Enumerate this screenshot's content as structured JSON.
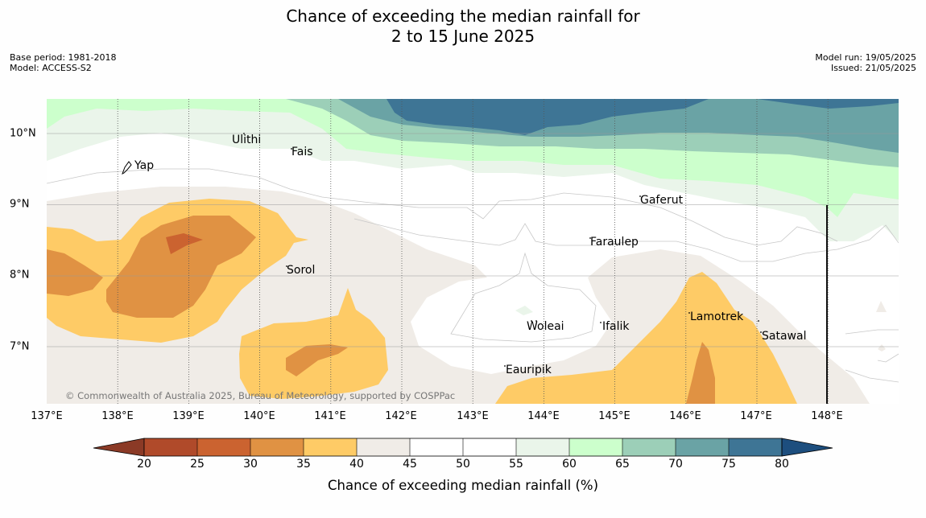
{
  "title": {
    "line1": "Chance of exceeding the median rainfall for",
    "line2": "2 to 15 June 2025"
  },
  "meta": {
    "base_period": "Base period: 1981-2018",
    "model": "Model: ACCESS-S2",
    "model_run": "Model run: 19/05/2025",
    "issued": "Issued: 21/05/2025"
  },
  "map": {
    "lon_range": [
      137,
      149
    ],
    "lat_range": [
      6.2,
      10.5
    ],
    "x_ticks": [
      "137°E",
      "138°E",
      "139°E",
      "140°E",
      "141°E",
      "142°E",
      "143°E",
      "144°E",
      "145°E",
      "146°E",
      "147°E",
      "148°E"
    ],
    "y_ticks": [
      "10°N",
      "9°N",
      "8°N",
      "7°N"
    ],
    "places": [
      {
        "name": "Ulithi"
      },
      {
        "name": "Fais"
      },
      {
        "name": "Yap"
      },
      {
        "name": "Gaferut"
      },
      {
        "name": "Faraulep"
      },
      {
        "name": "Sorol"
      },
      {
        "name": "Lamotrek"
      },
      {
        "name": "Woleai"
      },
      {
        "name": "Ifalik"
      },
      {
        "name": "Satawal"
      },
      {
        "name": "Eauripik"
      }
    ],
    "copyright": "© Commonwealth of Australia 2025, Bureau of Meteorology, supported by COSPPac"
  },
  "colorbar": {
    "label": "Chance of exceeding median rainfall (%)",
    "ticks": [
      "20",
      "25",
      "30",
      "35",
      "40",
      "45",
      "50",
      "55",
      "60",
      "65",
      "70",
      "75",
      "80"
    ],
    "colors": {
      "lt20": "#8b3a26",
      "c20_25": "#b04a2a",
      "c25_30": "#cb6330",
      "c30_35": "#e09243",
      "c35_40": "#fecb66",
      "c40_45": "#f0ece7",
      "c45_50": "#ffffff",
      "c50_55": "#ffffff",
      "c55_60": "#eaf5ea",
      "c60_65": "#ccffcc",
      "c65_70": "#9ccfb8",
      "c70_75": "#6aa3a5",
      "c75_80": "#3e7595",
      "gt80": "#1d4e7e"
    }
  }
}
